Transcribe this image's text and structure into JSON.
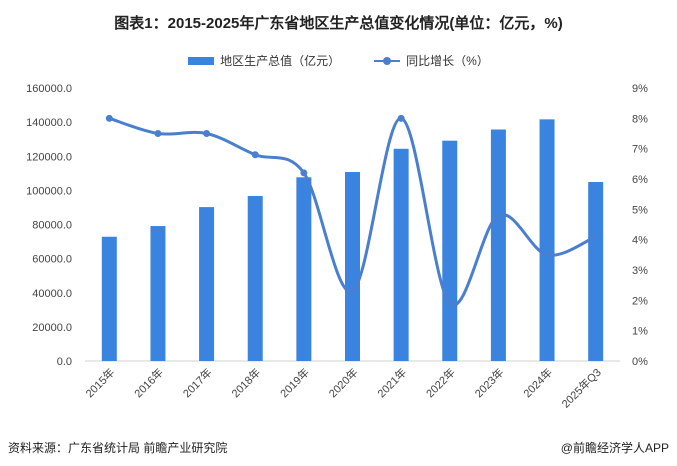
{
  "title": "图表1：2015-2025年广东省地区生产总值变化情况(单位：亿元，%)",
  "footer": "资料来源：广东省统计局 前瞻产业研究院",
  "brand": "@前瞻经济学人APP",
  "colors": {
    "bar": "#3a84e0",
    "line": "#4a7fd0"
  },
  "chart_data": {
    "type": "bar+line",
    "categories": [
      "2015年",
      "2016年",
      "2017年",
      "2018年",
      "2019年",
      "2020年",
      "2021年",
      "2022年",
      "2023年",
      "2024年",
      "2025年Q3"
    ],
    "series": [
      {
        "name": "地区生产总值（亿元）",
        "type": "bar",
        "axis": "left",
        "values": [
          72813,
          79100,
          90200,
          96700,
          107671,
          110761,
          124370,
          129118,
          135673,
          141634,
          104900
        ]
      },
      {
        "name": "同比增长（%）",
        "type": "line",
        "axis": "right",
        "values": [
          8.0,
          7.5,
          7.5,
          6.8,
          6.2,
          2.3,
          8.0,
          1.9,
          4.8,
          3.5,
          4.1
        ]
      }
    ],
    "y_left": {
      "range": [
        0,
        160000
      ],
      "ticks": [
        "0.0",
        "20000.0",
        "40000.0",
        "60000.0",
        "80000.0",
        "100000.0",
        "120000.0",
        "140000.0",
        "160000.0"
      ]
    },
    "y_right": {
      "range": [
        0,
        9
      ],
      "ticks": [
        "0%",
        "1%",
        "2%",
        "3%",
        "4%",
        "5%",
        "6%",
        "7%",
        "8%",
        "9%"
      ]
    },
    "grid": false,
    "legend": "top"
  }
}
